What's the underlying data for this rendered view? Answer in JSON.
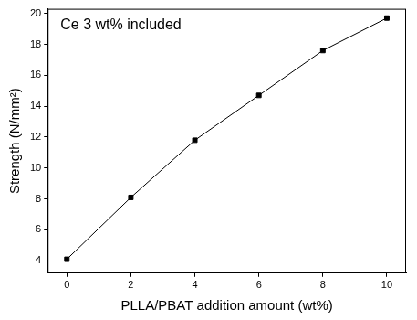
{
  "chart_data": {
    "type": "line",
    "annotation": "Ce 3 wt% included",
    "x_label": "PLLA/PBAT addition amount (wt%)",
    "y_label": "Strength (N/mm²)",
    "x": [
      0,
      2,
      4,
      6,
      8,
      10
    ],
    "values": [
      4.1,
      8.1,
      11.8,
      14.7,
      17.6,
      19.7
    ],
    "color": "#000000",
    "marker": "square",
    "line_style": "solid",
    "xlim": [
      -0.6,
      10.6
    ],
    "xticks": [
      0,
      2,
      4,
      6,
      8,
      10
    ],
    "ylim": [
      3.2,
      20.3
    ],
    "yticks": [
      4,
      6,
      8,
      10,
      12,
      14,
      16,
      18,
      20
    ],
    "grid": false
  }
}
